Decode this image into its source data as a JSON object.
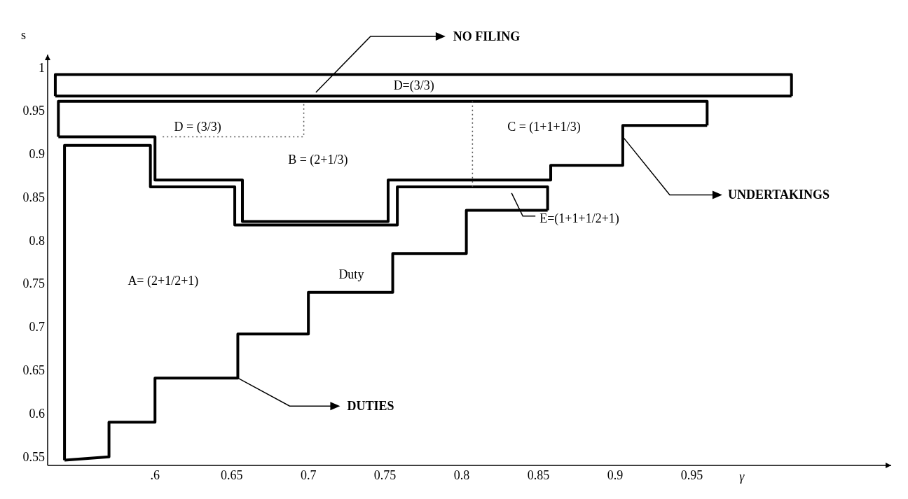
{
  "chart_data": {
    "type": "line",
    "xlabel": "γ",
    "ylabel": "s",
    "xlim": [
      0.53,
      1.08
    ],
    "ylim": [
      0.54,
      1.015
    ],
    "xticks": [
      {
        "value": 0.6,
        "label": ".6"
      },
      0.65,
      0.7,
      0.75,
      0.8,
      0.85,
      0.9,
      0.95
    ],
    "yticks": [
      0.55,
      0.6,
      0.65,
      0.7,
      0.75,
      0.8,
      0.85,
      0.9,
      0.95,
      1
    ],
    "grid": false,
    "marker": "none",
    "series": [
      {
        "color": "#000000",
        "line_style": "solid",
        "x": [
          0.535,
          0.535,
          1.015,
          1.015
        ],
        "values": [
          0.967,
          0.992,
          0.992,
          0.967
        ]
      },
      {
        "color": "#000000",
        "line_style": "solid",
        "x": [
          0.535,
          1.015
        ],
        "values": [
          0.967,
          0.967
        ]
      },
      {
        "color": "#000000",
        "line_style": "solid",
        "x": [
          0.537,
          0.537,
          0.96,
          0.96
        ],
        "values": [
          0.92,
          0.961,
          0.961,
          0.933
        ]
      },
      {
        "color": "#000000",
        "line_style": "solid",
        "x": [
          0.537,
          0.6,
          0.6,
          0.657,
          0.657,
          0.752,
          0.752,
          0.858,
          0.858,
          0.905,
          0.905,
          0.96
        ],
        "values": [
          0.92,
          0.92,
          0.87,
          0.87,
          0.822,
          0.822,
          0.87,
          0.87,
          0.887,
          0.887,
          0.933,
          0.933
        ]
      },
      {
        "color": "#000000",
        "line_style": "solid",
        "x": [
          0.541,
          0.541,
          0.597,
          0.597,
          0.652,
          0.652,
          0.758,
          0.758,
          0.856,
          0.856
        ],
        "values": [
          0.546,
          0.91,
          0.91,
          0.862,
          0.862,
          0.818,
          0.818,
          0.862,
          0.862,
          0.835
        ]
      },
      {
        "color": "#000000",
        "line_style": "solid",
        "x": [
          0.541,
          0.57,
          0.57,
          0.6,
          0.6,
          0.654,
          0.654,
          0.7,
          0.7,
          0.755,
          0.755,
          0.803,
          0.803,
          0.856
        ],
        "values": [
          0.546,
          0.55,
          0.59,
          0.59,
          0.641,
          0.641,
          0.692,
          0.692,
          0.74,
          0.74,
          0.785,
          0.785,
          0.835,
          0.835
        ]
      },
      {
        "color": "#555555",
        "line_style": "dotted",
        "x": [
          0.605,
          0.697,
          0.697
        ],
        "values": [
          0.92,
          0.92,
          0.961
        ]
      },
      {
        "color": "#555555",
        "line_style": "dotted",
        "x": [
          0.807,
          0.807
        ],
        "values": [
          0.961,
          0.862
        ]
      }
    ],
    "annotations": [
      "NO FILING",
      {
        "text": "UNDERTAKINGS",
        "x": 0.905,
        "y": 0.92
      },
      {
        "text": "DUTIES",
        "x": 0.654,
        "y": 0.641
      },
      "E=(1+1+1/2+1)",
      "D=(3/3)",
      "D = (3/3)",
      "B = (2+1/3)",
      "C = (1+1+1/3)",
      "A= (2+1/2+1)",
      "Duty"
    ]
  }
}
